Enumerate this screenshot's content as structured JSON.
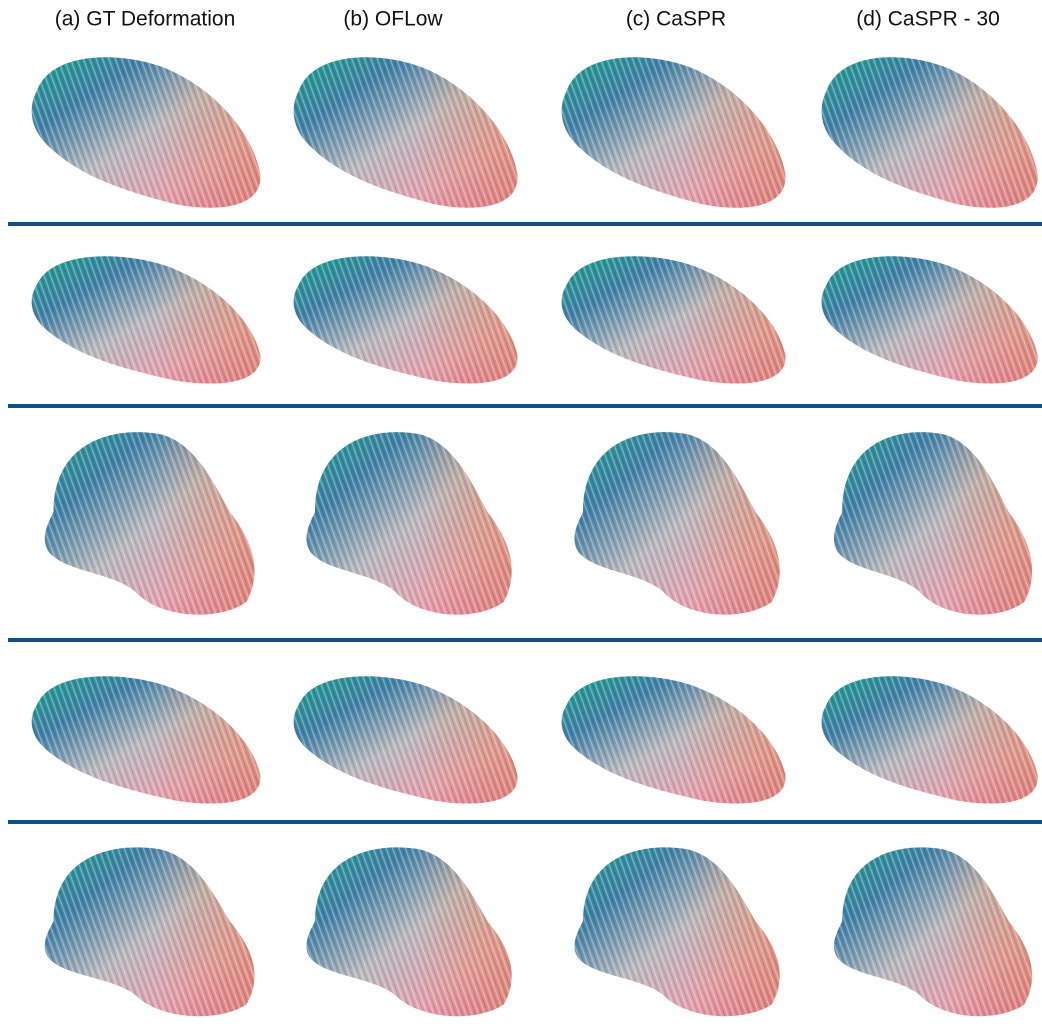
{
  "columns": [
    "(a) GT Deformation",
    "(b) OFLow",
    "(c) CaSPR",
    "(d) CaSPR - 30"
  ]
}
